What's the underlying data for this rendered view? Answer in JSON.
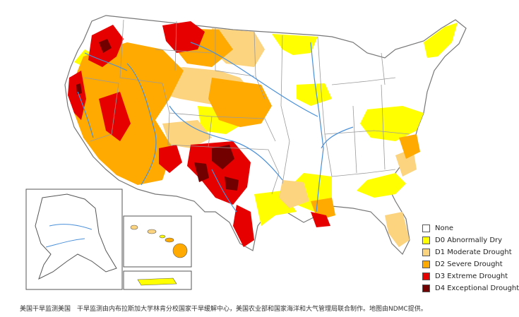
{
  "map": {
    "legend": [
      {
        "label": "None",
        "color": "#ffffff"
      },
      {
        "label": "D0 Abnormally Dry",
        "color": "#ffff00"
      },
      {
        "label": "D1 Moderate Drought",
        "color": "#fcd37f"
      },
      {
        "label": "D2 Severe Drought",
        "color": "#ffaa00"
      },
      {
        "label": "D3 Extreme Drought",
        "color": "#e60000"
      },
      {
        "label": "D4 Exceptional Drought",
        "color": "#730000"
      }
    ],
    "caption": "美国干旱监测美国　干旱监测由内布拉斯加大学林肯分校国家干旱缓解中心，美国农业部和国家海洋和大气管理局联合制作。地图由NDMC提供。",
    "colors": {
      "state_border": "#9a9a9a",
      "river": "#4a90d9",
      "none": "#ffffff",
      "d0": "#ffff00",
      "d1": "#fcd37f",
      "d2": "#ffaa00",
      "d3": "#e60000",
      "d4": "#730000"
    }
  }
}
